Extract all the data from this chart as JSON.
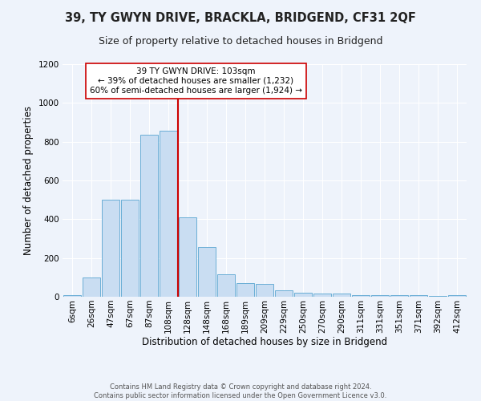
{
  "title": "39, TY GWYN DRIVE, BRACKLA, BRIDGEND, CF31 2QF",
  "subtitle": "Size of property relative to detached houses in Bridgend",
  "xlabel": "Distribution of detached houses by size in Bridgend",
  "ylabel": "Number of detached properties",
  "footnote": "Contains HM Land Registry data © Crown copyright and database right 2024.\nContains public sector information licensed under the Open Government Licence v3.0.",
  "bar_labels": [
    "6sqm",
    "26sqm",
    "47sqm",
    "67sqm",
    "87sqm",
    "108sqm",
    "128sqm",
    "148sqm",
    "168sqm",
    "189sqm",
    "209sqm",
    "229sqm",
    "250sqm",
    "270sqm",
    "290sqm",
    "311sqm",
    "331sqm",
    "351sqm",
    "371sqm",
    "392sqm",
    "412sqm"
  ],
  "bar_values": [
    10,
    100,
    500,
    500,
    835,
    855,
    410,
    255,
    115,
    70,
    65,
    35,
    20,
    15,
    15,
    10,
    10,
    10,
    10,
    5,
    10
  ],
  "bar_color": "#c9ddf2",
  "bar_edge_color": "#6aaed6",
  "background_color": "#eef3fb",
  "grid_color": "#ffffff",
  "vline_x": 5.5,
  "vline_color": "#cc0000",
  "annotation_text": "39 TY GWYN DRIVE: 103sqm\n← 39% of detached houses are smaller (1,232)\n60% of semi-detached houses are larger (1,924) →",
  "annotation_box_color": "#ffffff",
  "annotation_box_edge": "#cc0000",
  "ylim": [
    0,
    1200
  ],
  "yticks": [
    0,
    200,
    400,
    600,
    800,
    1000,
    1200
  ],
  "title_fontsize": 10.5,
  "subtitle_fontsize": 9,
  "label_fontsize": 8.5,
  "tick_fontsize": 7.5,
  "annot_fontsize": 7.5,
  "footnote_fontsize": 6
}
